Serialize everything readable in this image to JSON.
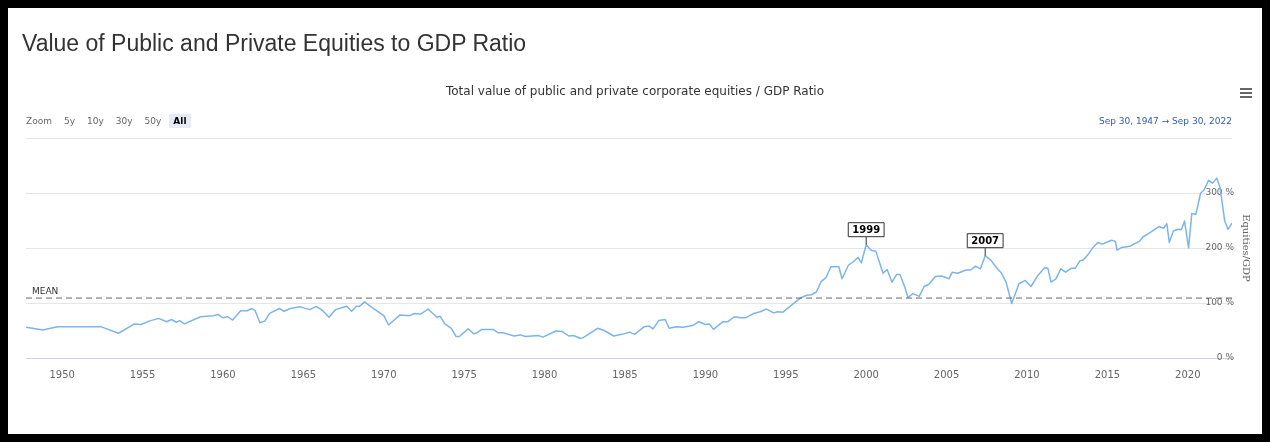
{
  "chart_data": {
    "type": "line",
    "title": "Value of Public and Private Equities to GDP Ratio",
    "subtitle": "Total value of public and private corporate equities / GDP Ratio",
    "ylabel": "Equities/GDP",
    "annotations": [
      "Zoom",
      "5y",
      "10y",
      "30y",
      "50y",
      "All",
      "Sep 30, 1947 → Sep 30, 2022",
      {
        "text": "1999",
        "x": 2000,
        "y": 206
      },
      {
        "text": "2007",
        "x": 2007.4,
        "y": 186
      }
    ],
    "series": [
      {
        "color": "#7cb5ec",
        "x": [
          1947.76,
          1948.8,
          1949.7,
          1952.4,
          1953.5,
          1954.5,
          1954.9,
          1955.4,
          1956,
          1956.5,
          1956.8,
          1957.1,
          1957.3,
          1957.6,
          1958.6,
          1959.4,
          1959.7,
          1960,
          1960.3,
          1960.6,
          1961.1,
          1961.5,
          1961.8,
          1962,
          1962.3,
          1962.6,
          1962.9,
          1963.5,
          1963.8,
          1964.2,
          1964.8,
          1965.4,
          1965.8,
          1966.2,
          1966.6,
          1967,
          1967.7,
          1968,
          1968.3,
          1968.5,
          1968.8,
          1969.3,
          1970,
          1970.3,
          1971,
          1971.6,
          1971.9,
          1972.3,
          1972.75,
          1973.3,
          1973.5,
          1973.8,
          1974.2,
          1974.5,
          1974.7,
          1975.25,
          1975.6,
          1975.8,
          1976.1,
          1976.8,
          1977.1,
          1977.4,
          1978.1,
          1978.5,
          1978.8,
          1979.6,
          1979.9,
          1980.7,
          1981.1,
          1981.5,
          1981.8,
          1982.2,
          1982.4,
          1983.3,
          1983.7,
          1984.3,
          1984.8,
          1985.3,
          1985.6,
          1986.2,
          1986.5,
          1986.75,
          1987.1,
          1987.5,
          1987.75,
          1988.2,
          1988.6,
          1989.2,
          1989.6,
          1990,
          1990.25,
          1990.5,
          1991.1,
          1991.4,
          1991.8,
          1992.2,
          1992.5,
          1993,
          1993.4,
          1993.8,
          1994.25,
          1994.5,
          1994.8,
          1995.4,
          1995.9,
          1996.3,
          1996.6,
          1996.9,
          1997.2,
          1997.5,
          1997.8,
          1998.3,
          1998.5,
          1998.9,
          1999.2,
          1999.5,
          1999.7,
          2000,
          2000.3,
          2000.6,
          2001.05,
          2001.3,
          2001.6,
          2001.9,
          2002.1,
          2002.4,
          2002.6,
          2002.9,
          2003.3,
          2003.6,
          2003.9,
          2004.3,
          2004.7,
          2005.15,
          2005.35,
          2005.7,
          2006.2,
          2006.5,
          2006.8,
          2007.1,
          2007.4,
          2007.75,
          2008.2,
          2008.4,
          2008.7,
          2009.05,
          2009.5,
          2009.9,
          2010.25,
          2010.7,
          2011.1,
          2011.3,
          2011.5,
          2011.8,
          2012.1,
          2012.4,
          2012.75,
          2013,
          2013.3,
          2013.5,
          2013.8,
          2014.05,
          2014.4,
          2014.7,
          2015.25,
          2015.5,
          2015.6,
          2015.9,
          2016.4,
          2016.7,
          2017,
          2017.2,
          2017.65,
          2017.95,
          2018.2,
          2018.5,
          2018.7,
          2018.85,
          2019.1,
          2019.4,
          2019.6,
          2019.8,
          2020.05,
          2020.25,
          2020.5,
          2020.8,
          2021,
          2021.3,
          2021.55,
          2021.8,
          2022,
          2022.3,
          2022.5,
          2022.75
        ],
        "values": [
          56,
          51,
          57,
          57,
          45,
          62,
          61,
          67,
          72,
          66,
          70,
          65,
          68,
          62,
          75,
          77,
          79,
          73,
          75,
          69,
          86,
          86,
          90,
          86,
          64,
          67,
          81,
          90,
          85,
          90,
          93,
          88,
          94,
          86,
          74,
          88,
          94,
          85,
          94,
          94,
          102,
          91,
          77,
          60,
          78,
          77,
          81,
          80,
          89,
          74,
          76,
          62,
          54,
          39,
          39,
          53,
          44,
          46,
          52,
          52,
          46,
          46,
          40,
          42,
          39,
          41,
          38,
          49,
          48,
          40,
          41,
          36,
          37,
          54,
          50,
          40,
          43,
          47,
          43,
          57,
          58,
          53,
          68,
          70,
          54,
          57,
          56,
          59,
          66,
          61,
          62,
          52,
          66,
          66,
          75,
          73,
          73,
          81,
          84,
          89,
          82,
          84,
          83,
          97,
          109,
          114,
          115,
          120,
          139,
          146,
          166,
          166,
          144,
          169,
          175,
          183,
          173,
          206,
          196,
          194,
          154,
          161,
          138,
          152,
          152,
          129,
          110,
          117,
          112,
          130,
          134,
          148,
          149,
          144,
          156,
          154,
          160,
          160,
          167,
          162,
          186,
          178,
          161,
          155,
          138,
          99,
          135,
          141,
          130,
          151,
          164,
          163,
          138,
          144,
          162,
          156,
          163,
          163,
          177,
          178,
          188,
          199,
          210,
          207,
          214,
          212,
          196,
          201,
          203,
          208,
          212,
          220,
          228,
          234,
          239,
          236,
          244,
          210,
          231,
          234,
          233,
          249,
          200,
          263,
          261,
          300,
          305,
          323,
          318,
          327,
          311,
          249,
          234,
          245
        ]
      }
    ],
    "xlim": [
      1947.75,
      2022.75
    ],
    "xticks": [
      1950,
      1955,
      1960,
      1965,
      1970,
      1975,
      1980,
      1985,
      1990,
      1995,
      2000,
      2005,
      2010,
      2015,
      2020
    ],
    "ylim": [
      0,
      400
    ],
    "yticks": [
      {
        "value": 0,
        "label": "0 %"
      },
      {
        "value": 100,
        "label": "100 %"
      },
      {
        "value": 200,
        "label": "200 %"
      },
      {
        "value": 300,
        "label": "300 %"
      },
      {
        "value": 400,
        "label": null
      }
    ],
    "ref_lines": [
      {
        "axis": "y",
        "value": 109,
        "label": "MEAN",
        "color": "#666666",
        "line_style": "dashed"
      }
    ],
    "grid": "y",
    "legend": false,
    "marker": "none",
    "line_style": "solid"
  }
}
